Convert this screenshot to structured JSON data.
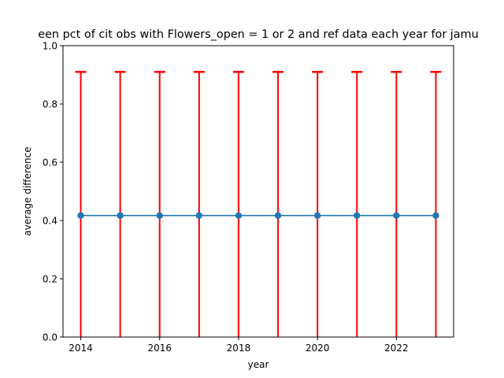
{
  "chart_data": {
    "type": "line",
    "title": "een pct of cit obs with Flowers_open = 1 or 2 and ref data each year for jamu",
    "xlabel": "year",
    "ylabel": "average difference",
    "xlim": [
      2013.55,
      2023.45
    ],
    "ylim": [
      0.0,
      1.0
    ],
    "x_ticks": [
      2014,
      2016,
      2018,
      2020,
      2022
    ],
    "y_ticks": [
      0.0,
      0.2,
      0.4,
      0.6,
      0.8,
      1.0
    ],
    "x_tick_labels": [
      "2014",
      "2016",
      "2018",
      "2020",
      "2022"
    ],
    "y_tick_labels": [
      "0.0",
      "0.2",
      "0.4",
      "0.6",
      "0.8",
      "1.0"
    ],
    "grid": false,
    "series": [
      {
        "x": [
          2014,
          2015,
          2016,
          2017,
          2018,
          2019,
          2020,
          2021,
          2022,
          2023
        ],
        "y": [
          0.417,
          0.417,
          0.417,
          0.417,
          0.417,
          0.417,
          0.417,
          0.417,
          0.417,
          0.417
        ],
        "error_low": [
          0.0,
          0.0,
          0.0,
          0.0,
          0.0,
          0.0,
          0.0,
          0.0,
          0.0,
          0.0
        ],
        "error_high": [
          0.91,
          0.91,
          0.91,
          0.91,
          0.91,
          0.91,
          0.91,
          0.91,
          0.91,
          0.91
        ]
      }
    ],
    "colors": {
      "line": "#1f77b4",
      "errorbar": "#ff0000",
      "axis": "#000000"
    }
  }
}
